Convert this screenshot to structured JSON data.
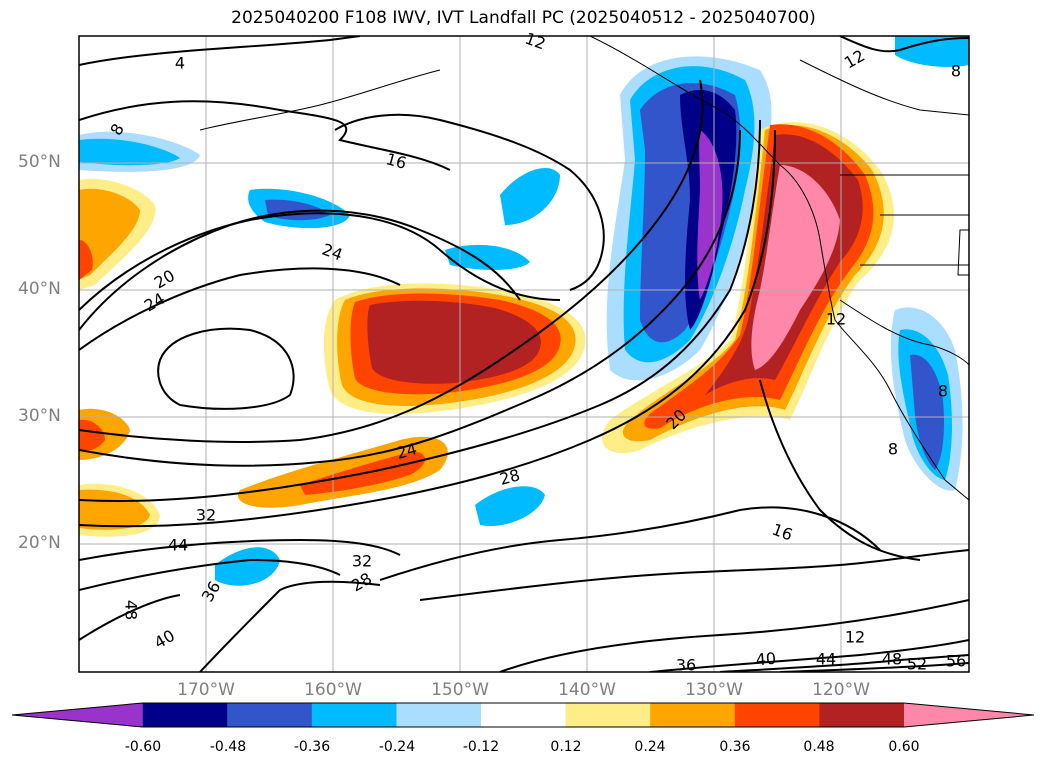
{
  "title": "2025040200 F108 IWV, IVT Landfall PC (2025040512 - 2025040700)",
  "lat_labels": [
    "50°N",
    "40°N",
    "30°N",
    "20°N"
  ],
  "lon_labels": [
    "170°W",
    "160°W",
    "150°W",
    "140°W",
    "130°W",
    "120°W"
  ],
  "contour_labels": [
    "4",
    "8",
    "12",
    "12",
    "16",
    "20",
    "24",
    "24",
    "24",
    "28",
    "28",
    "32",
    "32",
    "36",
    "36",
    "40",
    "40",
    "44",
    "44",
    "48",
    "48",
    "52",
    "56",
    "12",
    "16",
    "20",
    "8",
    "8",
    "8",
    "12"
  ],
  "colorbar": {
    "levels": [
      "-0.60",
      "-0.48",
      "-0.36",
      "-0.24",
      "-0.12",
      "0.12",
      "0.24",
      "0.36",
      "0.48",
      "0.60"
    ],
    "colors": [
      "#9933cc",
      "#000088",
      "#3355cc",
      "#00bbff",
      "#aaddff",
      "#ffffff",
      "#ffee88",
      "#ffa500",
      "#ff4400",
      "#b22222",
      "#ff88aa"
    ]
  }
}
